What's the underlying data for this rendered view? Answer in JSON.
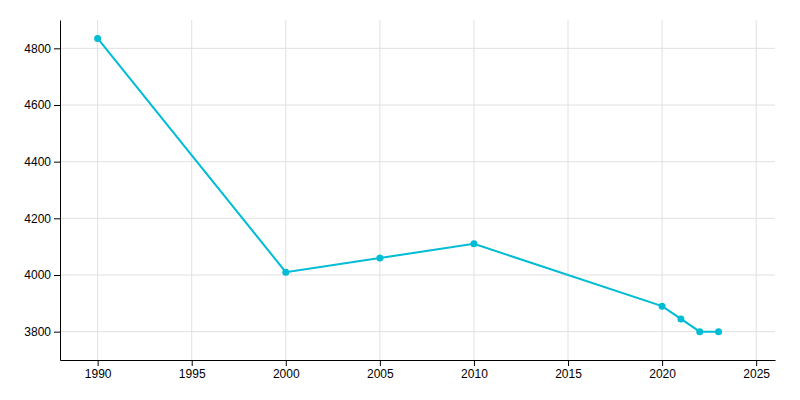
{
  "chart_data": {
    "type": "line",
    "x": [
      1990,
      2000,
      2005,
      2010,
      2020,
      2021,
      2022,
      2023
    ],
    "values": [
      4835,
      4010,
      4060,
      4110,
      3890,
      3845,
      3800,
      3800
    ],
    "color": "#00BCD4",
    "marker": "circle",
    "xlim": [
      1988,
      2026
    ],
    "ylim": [
      3700,
      4900
    ],
    "xticks": [
      1990,
      1995,
      2000,
      2005,
      2010,
      2015,
      2020,
      2025
    ],
    "yticks": [
      3800,
      4000,
      4200,
      4400,
      4600,
      4800
    ],
    "grid": true
  }
}
